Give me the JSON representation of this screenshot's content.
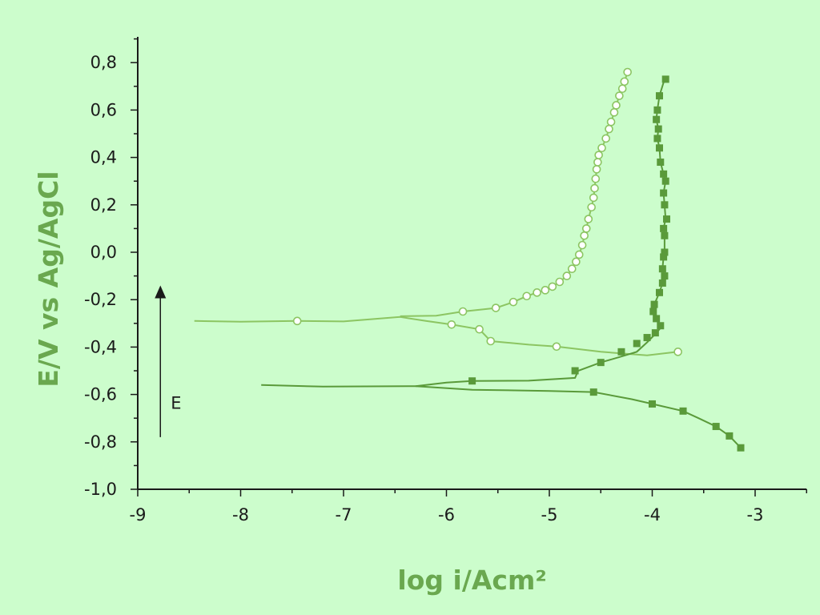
{
  "chart_data": {
    "type": "line",
    "title": "",
    "xlabel": "log i/Acm²",
    "ylabel": "E/V vs Ag/AgCl",
    "xlim": [
      -9,
      -2.5
    ],
    "ylim": [
      -1.0,
      0.9
    ],
    "x_ticks": [
      -9,
      -8,
      -7,
      -6,
      -5,
      -4,
      -3
    ],
    "x_tick_labels": [
      "-9",
      "-8",
      "-7",
      "-6",
      "-5",
      "-4",
      "-3"
    ],
    "y_ticks": [
      -1.0,
      -0.8,
      -0.6,
      -0.4,
      -0.2,
      0.0,
      0.2,
      0.4,
      0.6,
      0.8
    ],
    "y_tick_labels": [
      "-1,0",
      "-0,8",
      "-0,6",
      "-0,4",
      "-0,2",
      "0,0",
      "0,2",
      "0,4",
      "0,6",
      "0,8"
    ],
    "grid": false,
    "annotation": {
      "text": "E",
      "arrow": "upward",
      "x": -8.78,
      "y_from": -0.78,
      "y_to": -0.14
    },
    "colors": {
      "open_series": "#8cc562",
      "filled_series": "#5a9a3a",
      "axis_title": "#6aa84f",
      "axes": "#1a1a1a"
    },
    "series": [
      {
        "marker": "open-circle",
        "points": [
          [
            -8.45,
            -0.29
          ],
          [
            -8.0,
            -0.293
          ],
          [
            -7.45,
            -0.29
          ],
          [
            -7.0,
            -0.292
          ],
          [
            -6.45,
            -0.273
          ],
          [
            -6.2,
            -0.29
          ],
          [
            -5.95,
            -0.305
          ],
          [
            -5.68,
            -0.325
          ],
          [
            -5.57,
            -0.375
          ],
          [
            -5.2,
            -0.39
          ],
          [
            -4.93,
            -0.398
          ],
          [
            -4.5,
            -0.42
          ],
          [
            -4.05,
            -0.435
          ],
          [
            -3.75,
            -0.42
          ]
        ],
        "marker_points": [
          [
            -7.45,
            -0.29
          ],
          [
            -5.95,
            -0.305
          ],
          [
            -5.68,
            -0.325
          ],
          [
            -5.57,
            -0.375
          ],
          [
            -4.93,
            -0.398
          ],
          [
            -3.75,
            -0.42
          ]
        ]
      },
      {
        "marker": "open-circle",
        "points": [
          [
            -6.45,
            -0.27
          ],
          [
            -6.1,
            -0.268
          ],
          [
            -5.84,
            -0.25
          ],
          [
            -5.52,
            -0.235
          ],
          [
            -5.35,
            -0.21
          ],
          [
            -5.22,
            -0.185
          ],
          [
            -5.12,
            -0.17
          ],
          [
            -5.04,
            -0.16
          ],
          [
            -4.97,
            -0.145
          ],
          [
            -4.9,
            -0.125
          ],
          [
            -4.83,
            -0.1
          ],
          [
            -4.78,
            -0.07
          ],
          [
            -4.74,
            -0.04
          ],
          [
            -4.71,
            -0.01
          ],
          [
            -4.68,
            0.03
          ],
          [
            -4.66,
            0.07
          ],
          [
            -4.64,
            0.1
          ],
          [
            -4.62,
            0.14
          ],
          [
            -4.59,
            0.19
          ],
          [
            -4.57,
            0.23
          ],
          [
            -4.56,
            0.27
          ],
          [
            -4.55,
            0.31
          ],
          [
            -4.54,
            0.35
          ],
          [
            -4.53,
            0.38
          ],
          [
            -4.52,
            0.41
          ],
          [
            -4.49,
            0.44
          ],
          [
            -4.45,
            0.48
          ],
          [
            -4.42,
            0.52
          ],
          [
            -4.4,
            0.55
          ],
          [
            -4.37,
            0.59
          ],
          [
            -4.35,
            0.62
          ],
          [
            -4.32,
            0.66
          ],
          [
            -4.29,
            0.69
          ],
          [
            -4.27,
            0.72
          ],
          [
            -4.24,
            0.76
          ]
        ],
        "marker_points": [
          [
            -5.84,
            -0.25
          ],
          [
            -5.52,
            -0.235
          ],
          [
            -5.35,
            -0.21
          ],
          [
            -5.22,
            -0.185
          ],
          [
            -5.12,
            -0.17
          ],
          [
            -5.04,
            -0.16
          ],
          [
            -4.97,
            -0.145
          ],
          [
            -4.9,
            -0.125
          ],
          [
            -4.83,
            -0.1
          ],
          [
            -4.78,
            -0.07
          ],
          [
            -4.74,
            -0.04
          ],
          [
            -4.71,
            -0.01
          ],
          [
            -4.68,
            0.03
          ],
          [
            -4.66,
            0.07
          ],
          [
            -4.64,
            0.1
          ],
          [
            -4.62,
            0.14
          ],
          [
            -4.59,
            0.19
          ],
          [
            -4.57,
            0.23
          ],
          [
            -4.56,
            0.27
          ],
          [
            -4.55,
            0.31
          ],
          [
            -4.54,
            0.35
          ],
          [
            -4.53,
            0.38
          ],
          [
            -4.52,
            0.41
          ],
          [
            -4.49,
            0.44
          ],
          [
            -4.45,
            0.48
          ],
          [
            -4.42,
            0.52
          ],
          [
            -4.4,
            0.55
          ],
          [
            -4.37,
            0.59
          ],
          [
            -4.35,
            0.62
          ],
          [
            -4.32,
            0.66
          ],
          [
            -4.29,
            0.69
          ],
          [
            -4.27,
            0.72
          ],
          [
            -4.24,
            0.76
          ]
        ]
      },
      {
        "marker": "filled-square",
        "points": [
          [
            -7.8,
            -0.56
          ],
          [
            -7.2,
            -0.567
          ],
          [
            -6.3,
            -0.565
          ],
          [
            -5.75,
            -0.58
          ],
          [
            -5.0,
            -0.585
          ],
          [
            -4.57,
            -0.59
          ],
          [
            -4.2,
            -0.62
          ],
          [
            -4.0,
            -0.64
          ],
          [
            -3.7,
            -0.67
          ],
          [
            -3.55,
            -0.7
          ],
          [
            -3.38,
            -0.735
          ],
          [
            -3.25,
            -0.775
          ],
          [
            -3.14,
            -0.825
          ]
        ],
        "marker_points": [
          [
            -4.57,
            -0.59
          ],
          [
            -4.0,
            -0.64
          ],
          [
            -3.7,
            -0.67
          ],
          [
            -3.38,
            -0.735
          ],
          [
            -3.25,
            -0.775
          ],
          [
            -3.14,
            -0.825
          ]
        ]
      },
      {
        "marker": "filled-square",
        "points": [
          [
            -6.3,
            -0.565
          ],
          [
            -6.0,
            -0.55
          ],
          [
            -5.75,
            -0.543
          ],
          [
            -5.2,
            -0.542
          ],
          [
            -4.75,
            -0.53
          ],
          [
            -4.72,
            -0.5
          ],
          [
            -4.5,
            -0.465
          ],
          [
            -4.3,
            -0.44
          ],
          [
            -4.15,
            -0.42
          ],
          [
            -4.05,
            -0.38
          ],
          [
            -3.97,
            -0.345
          ],
          [
            -3.92,
            -0.32
          ],
          [
            -3.96,
            -0.28
          ],
          [
            -3.99,
            -0.25
          ],
          [
            -3.98,
            -0.22
          ],
          [
            -3.93,
            -0.17
          ],
          [
            -3.9,
            -0.13
          ],
          [
            -3.88,
            -0.1
          ],
          [
            -3.9,
            -0.07
          ],
          [
            -3.89,
            -0.02
          ],
          [
            -3.88,
            0.0
          ],
          [
            -3.88,
            0.07
          ],
          [
            -3.89,
            0.1
          ],
          [
            -3.87,
            0.14
          ],
          [
            -3.88,
            0.2
          ],
          [
            -3.89,
            0.25
          ],
          [
            -3.87,
            0.3
          ],
          [
            -3.89,
            0.33
          ],
          [
            -3.92,
            0.38
          ],
          [
            -3.93,
            0.44
          ],
          [
            -3.95,
            0.48
          ],
          [
            -3.94,
            0.52
          ],
          [
            -3.96,
            0.56
          ],
          [
            -3.95,
            0.6
          ],
          [
            -3.93,
            0.66
          ],
          [
            -3.88,
            0.73
          ]
        ],
        "marker_points": [
          [
            -5.75,
            -0.543
          ],
          [
            -4.75,
            -0.5
          ],
          [
            -4.5,
            -0.465
          ],
          [
            -4.3,
            -0.42
          ],
          [
            -4.15,
            -0.385
          ],
          [
            -4.05,
            -0.36
          ],
          [
            -3.97,
            -0.34
          ],
          [
            -3.92,
            -0.31
          ],
          [
            -3.96,
            -0.28
          ],
          [
            -3.99,
            -0.25
          ],
          [
            -3.98,
            -0.22
          ],
          [
            -3.93,
            -0.17
          ],
          [
            -3.9,
            -0.13
          ],
          [
            -3.88,
            -0.1
          ],
          [
            -3.9,
            -0.07
          ],
          [
            -3.89,
            -0.02
          ],
          [
            -3.88,
            0.0
          ],
          [
            -3.88,
            0.07
          ],
          [
            -3.89,
            0.1
          ],
          [
            -3.86,
            0.14
          ],
          [
            -3.88,
            0.2
          ],
          [
            -3.89,
            0.25
          ],
          [
            -3.87,
            0.3
          ],
          [
            -3.89,
            0.33
          ],
          [
            -3.92,
            0.38
          ],
          [
            -3.93,
            0.44
          ],
          [
            -3.95,
            0.48
          ],
          [
            -3.94,
            0.52
          ],
          [
            -3.96,
            0.56
          ],
          [
            -3.95,
            0.6
          ],
          [
            -3.93,
            0.66
          ],
          [
            -3.87,
            0.73
          ]
        ]
      }
    ]
  }
}
